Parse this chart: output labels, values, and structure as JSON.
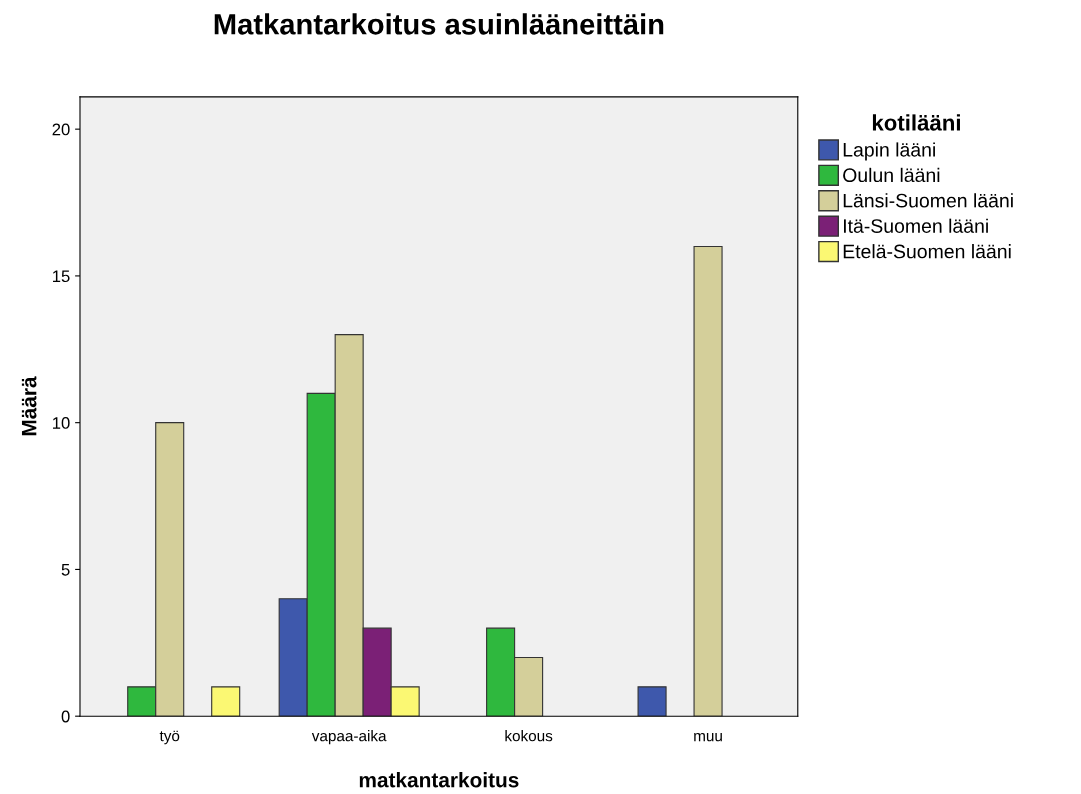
{
  "chart_data": {
    "type": "bar",
    "title": "Matkantarkoitus asuinlääneittäin",
    "xlabel": "matkantarkoitus",
    "ylabel": "Määrä",
    "legend_title": "kotilääni",
    "categories": [
      "työ",
      "vapaa-aika",
      "kokous",
      "muu"
    ],
    "series": [
      {
        "name": "Lapin lääni",
        "color": "#3e58ac",
        "values": [
          null,
          4,
          null,
          1
        ]
      },
      {
        "name": "Oulun lääni",
        "color": "#2fb83e",
        "values": [
          1,
          11,
          3,
          null
        ]
      },
      {
        "name": "Länsi-Suomen lääni",
        "color": "#d4cf9a",
        "values": [
          10,
          13,
          2,
          16
        ]
      },
      {
        "name": "Itä-Suomen lääni",
        "color": "#7b2076",
        "values": [
          null,
          3,
          null,
          null
        ]
      },
      {
        "name": "Etelä-Suomen lääni",
        "color": "#fbf873",
        "values": [
          1,
          1,
          null,
          null
        ]
      }
    ],
    "ylim": [
      0,
      21.1
    ],
    "yticks": [
      0,
      5,
      10,
      15,
      20
    ],
    "grid": false,
    "legend": "right"
  }
}
